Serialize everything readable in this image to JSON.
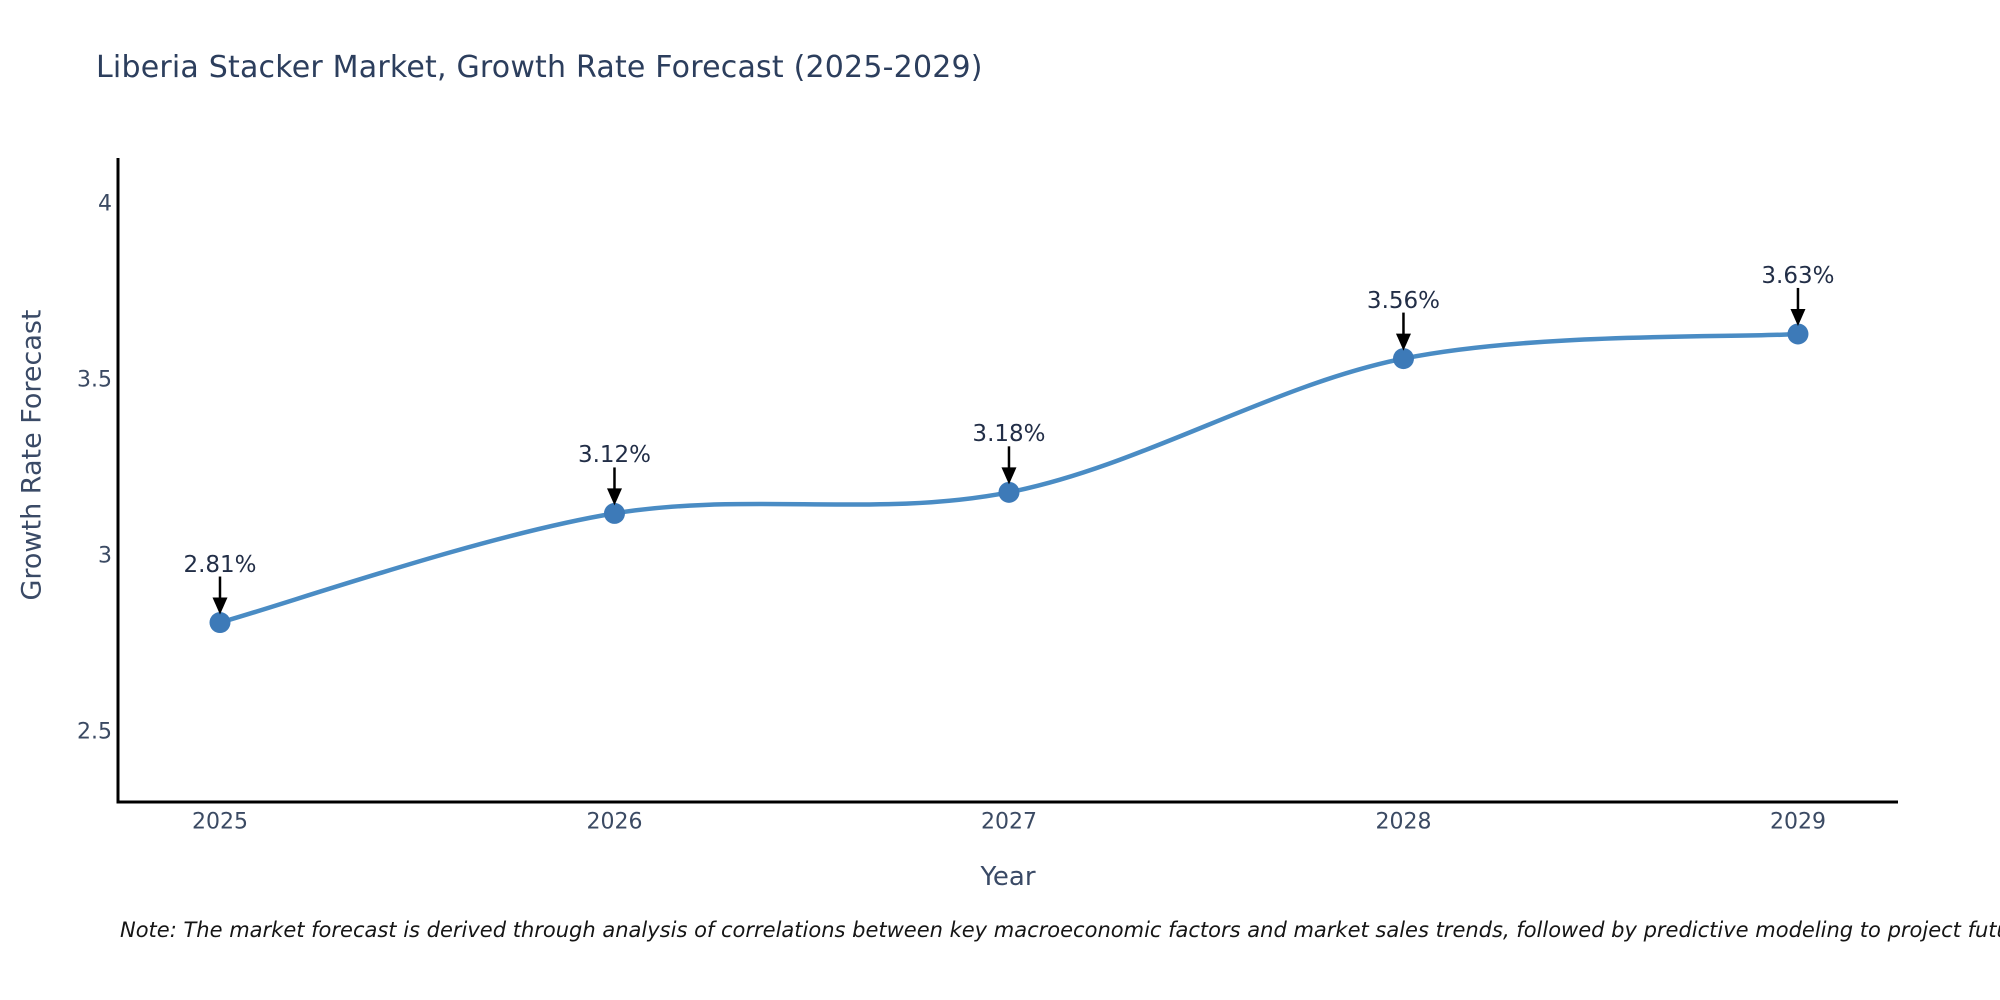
{
  "title": "Liberia Stacker Market, Growth Rate Forecast (2025-2029)",
  "note": "Note: The market forecast is derived through analysis of correlations between key macroeconomic factors and market sales trends, followed by predictive modeling to project future sales",
  "chart_data": {
    "type": "line",
    "title": "Liberia Stacker Market, Growth Rate Forecast (2025-2029)",
    "xlabel": "Year",
    "ylabel": "Growth Rate Forecast",
    "x": [
      2025,
      2026,
      2027,
      2028,
      2029
    ],
    "xtick_labels": [
      "2025",
      "2026",
      "2027",
      "2028",
      "2029"
    ],
    "series": [
      {
        "name": "Growth Rate Forecast",
        "values": [
          2.81,
          3.12,
          3.18,
          3.56,
          3.63
        ]
      }
    ],
    "point_labels": [
      "2.81%",
      "3.12%",
      "3.18%",
      "3.56%",
      "3.63%"
    ],
    "yticks": [
      2.5,
      3,
      3.5,
      4
    ],
    "ytick_labels": [
      "2.5",
      "3",
      "3.5",
      "4"
    ],
    "ylim": [
      2.3,
      4.13
    ],
    "grid": false,
    "legend": false,
    "line_shape": "spline",
    "colors": {
      "line": "#4a8cc4",
      "marker": "#3d7ab8",
      "axis": "#000000",
      "annotation_arrow": "#000000"
    }
  }
}
